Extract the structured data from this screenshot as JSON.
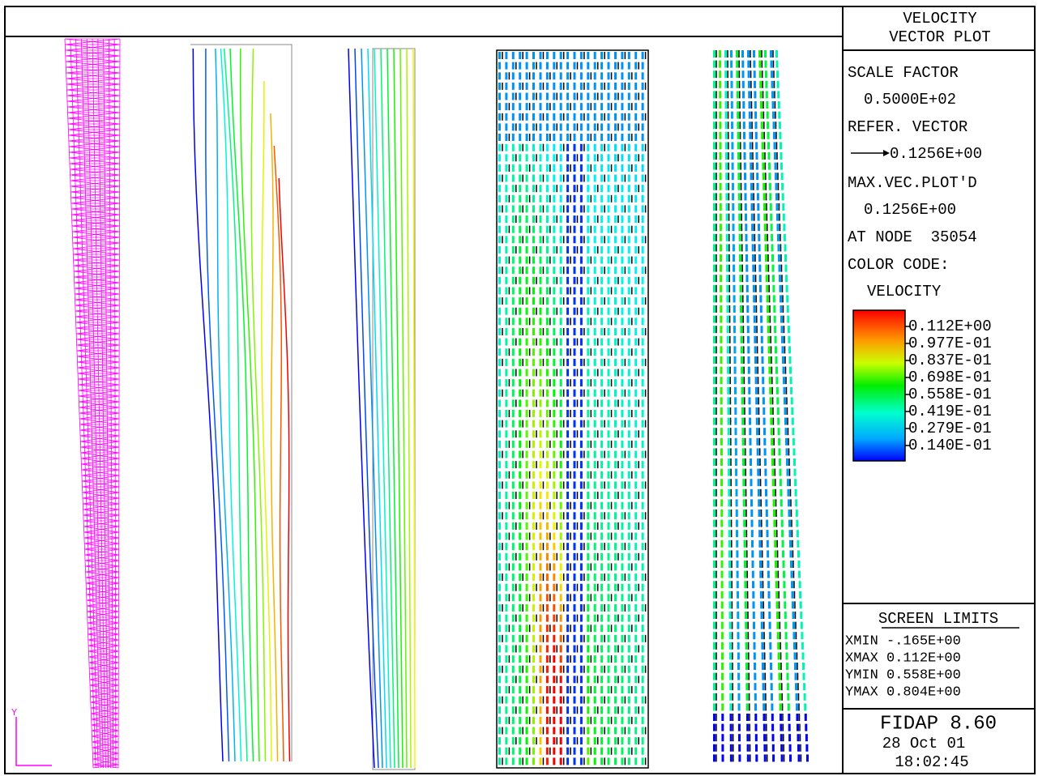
{
  "header": {
    "title": [
      "VELOCITY",
      "VECTOR PLOT"
    ]
  },
  "info": {
    "scale_factor_label": "SCALE FACTOR",
    "scale_factor": "0.5000E+02",
    "refer_vector_label": "REFER. VECTOR",
    "refer_vector": "0.1256E+00",
    "max_vec_label": "MAX.VEC.PLOT'D",
    "max_vec": "0.1256E+00",
    "at_node": "AT NODE  35054",
    "color_code_label": "COLOR CODE:",
    "color_code": "VELOCITY"
  },
  "legend": {
    "labels": [
      "0.112E+00",
      "0.977E-01",
      "0.837E-01",
      "0.698E-01",
      "0.558E-01",
      "0.419E-01",
      "0.279E-01",
      "0.140E-01"
    ]
  },
  "screen_limits": {
    "title": "SCREEN LIMITS",
    "rows": [
      "XMIN -.165E+00",
      "XMAX 0.112E+00",
      "YMIN 0.558E+00",
      "YMAX 0.804E+00"
    ]
  },
  "footer": {
    "program": "FIDAP 8.60",
    "date": "28 Oct 01",
    "time": "18:02:45"
  },
  "axis_label": "Y"
}
